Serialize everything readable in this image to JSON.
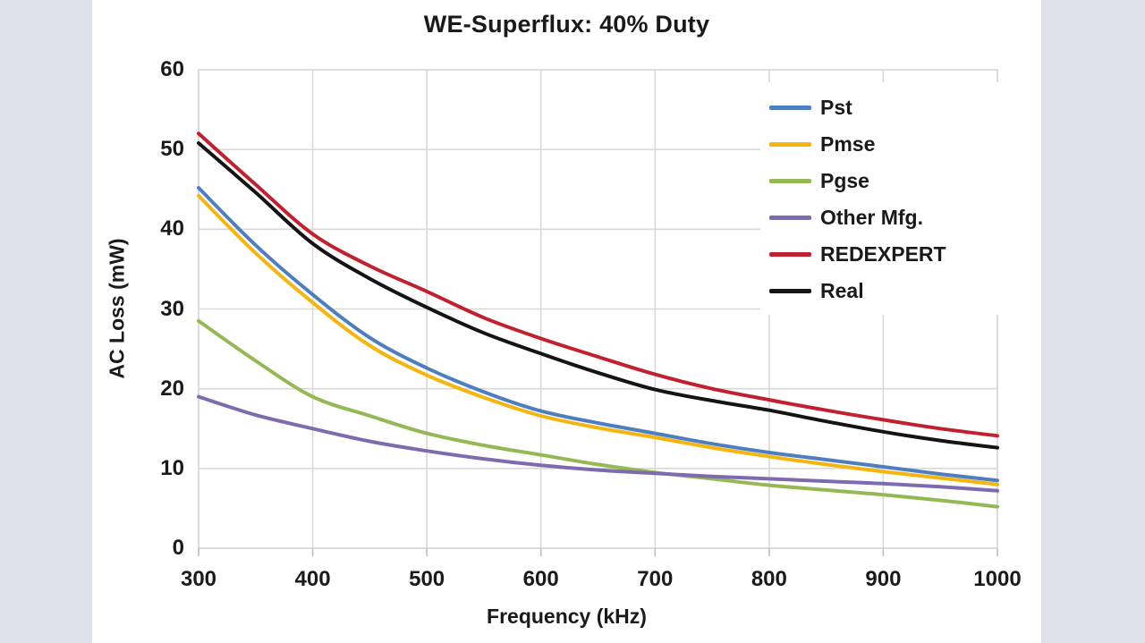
{
  "colors": {
    "side_band": "#dee1ea",
    "panel": "#ffffff",
    "gridline": "#d9d9d9",
    "tick_mark": "#bfbfbf",
    "text": "#1a1a1a"
  },
  "chart_data": {
    "type": "line",
    "title": "WE-Superflux: 40% Duty",
    "xlabel": "Frequency (kHz)",
    "ylabel": "AC Loss (mW)",
    "xlim": [
      300,
      1000
    ],
    "ylim": [
      0,
      60
    ],
    "x_ticks": [
      300,
      400,
      500,
      600,
      700,
      800,
      900,
      1000
    ],
    "y_ticks": [
      0,
      10,
      20,
      30,
      40,
      50,
      60
    ],
    "grid": true,
    "legend_position": "inside-top-right",
    "x": [
      300,
      350,
      400,
      450,
      500,
      550,
      600,
      650,
      700,
      750,
      800,
      850,
      900,
      950,
      1000
    ],
    "series": [
      {
        "name": "Pst",
        "color": "#4d7ebf",
        "values": [
          45.2,
          38.0,
          31.8,
          26.4,
          22.6,
          19.6,
          17.2,
          15.7,
          14.4,
          13.1,
          12.0,
          11.1,
          10.2,
          9.3,
          8.5
        ]
      },
      {
        "name": "Pmse",
        "color": "#f6b40e",
        "values": [
          44.2,
          37.0,
          30.8,
          25.4,
          21.7,
          18.9,
          16.6,
          15.1,
          13.9,
          12.6,
          11.5,
          10.5,
          9.6,
          8.8,
          8.0
        ]
      },
      {
        "name": "Pgse",
        "color": "#94b854",
        "values": [
          28.5,
          23.5,
          19.0,
          16.6,
          14.4,
          12.9,
          11.7,
          10.5,
          9.5,
          8.7,
          7.9,
          7.3,
          6.7,
          6.0,
          5.2
        ]
      },
      {
        "name": "Other Mfg.",
        "color": "#7e6baf",
        "values": [
          19.0,
          16.7,
          15.0,
          13.4,
          12.2,
          11.2,
          10.4,
          9.8,
          9.4,
          9.0,
          8.7,
          8.4,
          8.1,
          7.7,
          7.2
        ]
      },
      {
        "name": "REDEXPERT",
        "color": "#c2202e",
        "values": [
          52.0,
          45.6,
          39.4,
          35.4,
          32.2,
          28.9,
          26.3,
          24.0,
          21.8,
          20.0,
          18.6,
          17.3,
          16.1,
          15.0,
          14.1
        ]
      },
      {
        "name": "Real",
        "color": "#141414",
        "values": [
          50.8,
          44.6,
          38.2,
          33.8,
          30.2,
          27.0,
          24.4,
          22.0,
          19.9,
          18.5,
          17.3,
          15.9,
          14.6,
          13.5,
          12.6
        ]
      }
    ]
  }
}
